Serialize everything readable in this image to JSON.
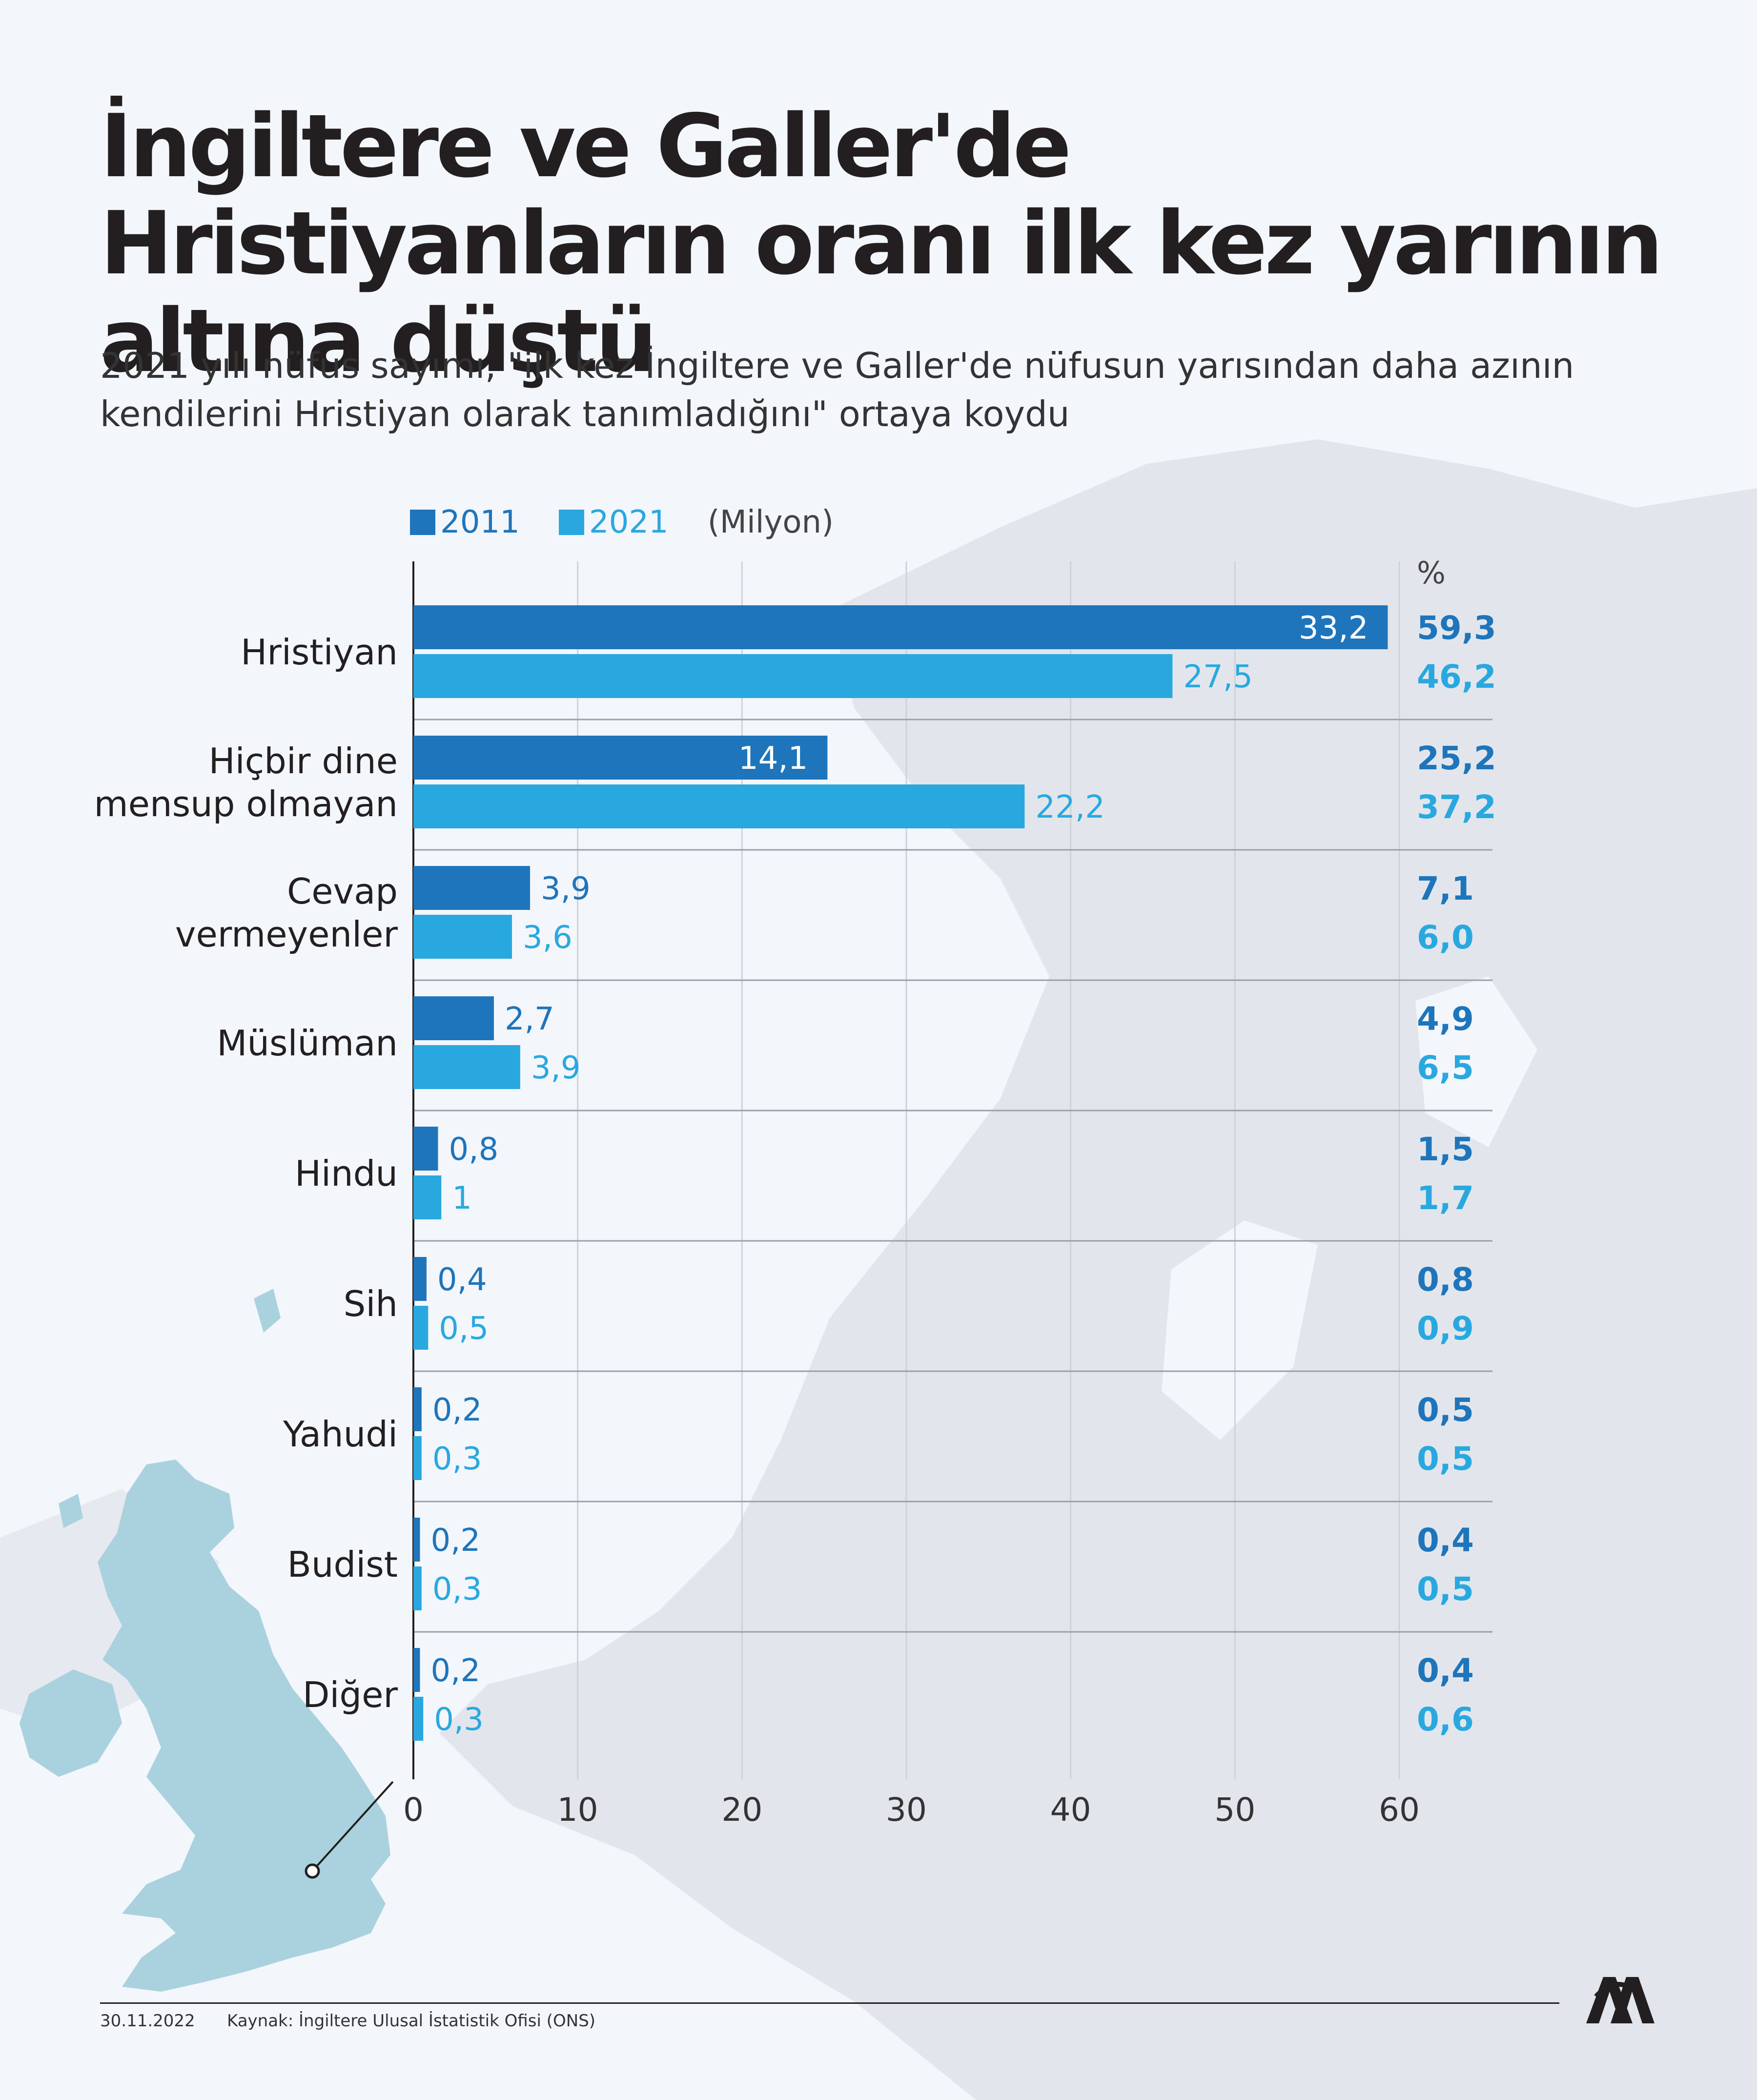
{
  "title": "İngiltere ve Galler'de Hristiyanların oranı ilk kez yarının altına düştü",
  "subtitle": "2021 yılı nüfus sayımı, \"ilk kez İngiltere ve Galler'de nüfusun yarısından daha azının kendilerini Hristiyan olarak tanımladığını\" ortaya koydu",
  "legend": {
    "s2011": "2011",
    "s2021": "2021",
    "unit": "(Milyon)"
  },
  "pct_header": "%",
  "colors": {
    "s2011": "#1e75bb",
    "s2021": "#29a8e0",
    "grid": "#cfd3d9",
    "map": "#e2e6ec",
    "uk": "#a9d2de"
  },
  "footer": {
    "date": "30.11.2022",
    "source": "Kaynak: İngiltere Ulusal İstatistik Ofisi (ONS)"
  },
  "chart_data": {
    "type": "bar",
    "orientation": "horizontal",
    "categories": [
      "Hristiyan",
      "Hiçbir dine mensup olmayan",
      "Cevap vermeyenler",
      "Müslüman",
      "Hindu",
      "Sih",
      "Yahudi",
      "Budist",
      "Diğer"
    ],
    "category_lines": [
      [
        "Hristiyan"
      ],
      [
        "Hiçbir dine",
        "mensup olmayan"
      ],
      [
        "Cevap",
        "vermeyenler"
      ],
      [
        "Müslüman"
      ],
      [
        "Hindu"
      ],
      [
        "Sih"
      ],
      [
        "Yahudi"
      ],
      [
        "Budist"
      ],
      [
        "Diğer"
      ]
    ],
    "series": [
      {
        "name": "2011",
        "values": [
          33.2,
          14.1,
          3.9,
          2.7,
          0.8,
          0.4,
          0.2,
          0.2,
          0.2
        ],
        "value_labels": [
          "33,2",
          "14,1",
          "3,9",
          "2,7",
          "0,8",
          "0,4",
          "0,2",
          "0,2",
          "0,2"
        ],
        "percent": [
          59.3,
          25.2,
          7.1,
          4.9,
          1.5,
          0.8,
          0.5,
          0.4,
          0.4
        ],
        "percent_labels": [
          "59,3",
          "25,2",
          "7,1",
          "4,9",
          "1,5",
          "0,8",
          "0,5",
          "0,4",
          "0,4"
        ]
      },
      {
        "name": "2021",
        "values": [
          27.5,
          22.2,
          3.6,
          3.9,
          1.0,
          0.5,
          0.3,
          0.3,
          0.3
        ],
        "value_labels": [
          "27,5",
          "22,2",
          "3,6",
          "3,9",
          "1",
          "0,5",
          "0,3",
          "0,3",
          "0,3"
        ],
        "percent": [
          46.2,
          37.2,
          6.0,
          6.5,
          1.7,
          0.9,
          0.5,
          0.5,
          0.6
        ],
        "percent_labels": [
          "46,2",
          "37,2",
          "6,0",
          "6,5",
          "1,7",
          "0,9",
          "0,5",
          "0,5",
          "0,6"
        ]
      }
    ],
    "bar_axis": "percent",
    "x_ticks": [
      0,
      10,
      20,
      30,
      40,
      50,
      60
    ],
    "xlim": [
      0,
      60
    ],
    "grid": true,
    "legend_position": "top-left"
  }
}
